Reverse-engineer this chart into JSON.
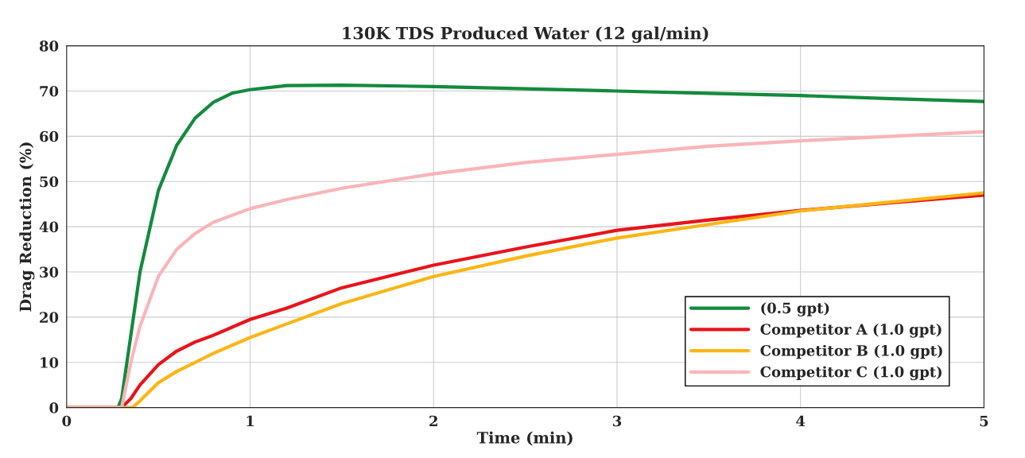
{
  "chart_data": {
    "type": "line",
    "title": "130K TDS Produced Water (12 gal/min)",
    "xlabel": "Time (min)",
    "ylabel": "Drag Reduction (%)",
    "xlim": [
      0,
      5
    ],
    "xticks": [
      0,
      1,
      2,
      3,
      4,
      5
    ],
    "ylim": [
      0,
      80
    ],
    "yticks": [
      0,
      10,
      20,
      30,
      40,
      50,
      60,
      70,
      80
    ],
    "grid": true,
    "legend": "bottom right",
    "marker": "none",
    "line_style": "solid",
    "series": [
      {
        "name": "(0.5 gpt)",
        "color": "#138a3d",
        "x": [
          0,
          0.28,
          0.3,
          0.35,
          0.4,
          0.5,
          0.6,
          0.7,
          0.8,
          0.9,
          1.0,
          1.2,
          1.5,
          2,
          2.5,
          3,
          3.5,
          4,
          4.5,
          5
        ],
        "values": [
          0,
          0,
          2,
          16,
          30,
          48,
          58,
          64,
          67.5,
          69.5,
          70.3,
          71.2,
          71.3,
          71,
          70.5,
          70,
          69.5,
          69,
          68.3,
          67.7
        ]
      },
      {
        "name": "Competitor A (1.0 gpt)",
        "color": "#e8141b",
        "x": [
          0,
          0.3,
          0.35,
          0.4,
          0.5,
          0.6,
          0.7,
          0.8,
          1.0,
          1.2,
          1.5,
          2,
          2.5,
          3,
          3.5,
          4,
          4.5,
          5
        ],
        "values": [
          0,
          0,
          2,
          5,
          9.5,
          12.5,
          14.5,
          16,
          19.5,
          22,
          26.5,
          31.5,
          35.5,
          39.2,
          41.5,
          43.6,
          45.3,
          47
        ]
      },
      {
        "name": "Competitor B (1.0 gpt)",
        "color": "#fbb616",
        "x": [
          0,
          0.36,
          0.4,
          0.5,
          0.6,
          0.7,
          0.8,
          1.0,
          1.2,
          1.5,
          2,
          2.5,
          3,
          3.5,
          4,
          4.5,
          5
        ],
        "values": [
          0,
          0,
          1.5,
          5.5,
          8,
          10,
          12,
          15.5,
          18.5,
          23,
          29,
          33.5,
          37.5,
          40.5,
          43.5,
          45.5,
          47.5
        ]
      },
      {
        "name": "Competitor C (1.0 gpt)",
        "color": "#f9b5b8",
        "x": [
          0,
          0.3,
          0.35,
          0.4,
          0.5,
          0.6,
          0.7,
          0.8,
          1.0,
          1.2,
          1.5,
          2,
          2.5,
          3,
          3.5,
          4,
          4.5,
          5
        ],
        "values": [
          0,
          0,
          10,
          18,
          29,
          35,
          38.5,
          41,
          44,
          46,
          48.5,
          51.7,
          54.2,
          56,
          57.8,
          59,
          60,
          61
        ]
      }
    ]
  }
}
